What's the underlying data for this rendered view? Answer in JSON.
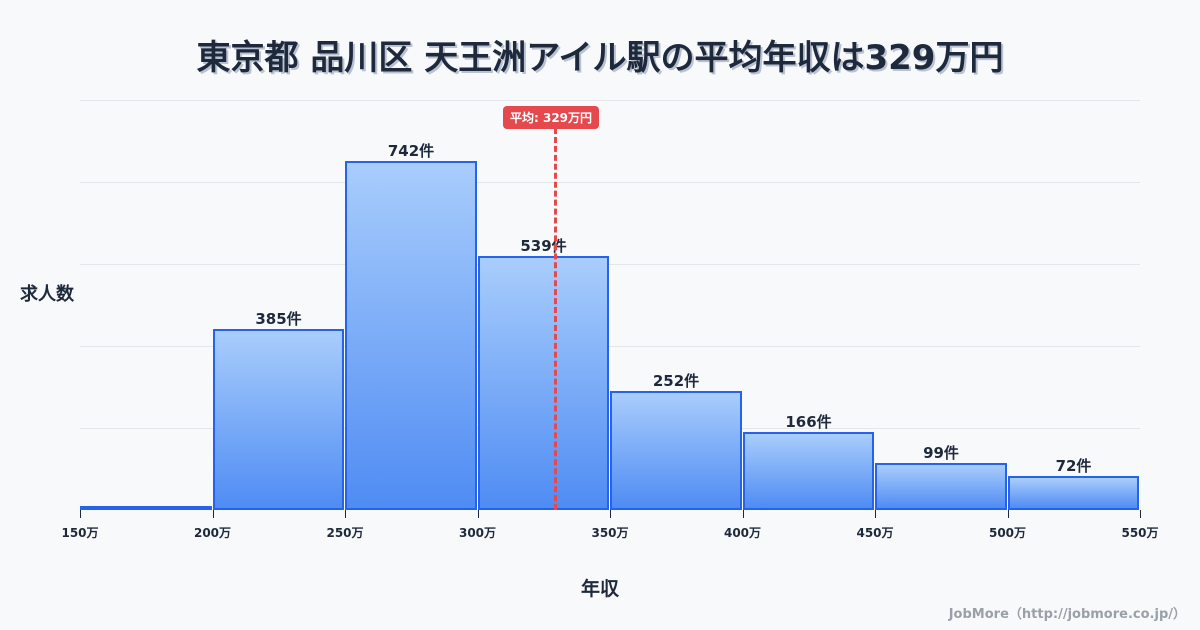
{
  "title": "東京都 品川区 天王洲アイル駅の平均年収は329万円",
  "axis": {
    "ylabel": "求人数",
    "xlabel": "年収"
  },
  "average": {
    "label": "平均: 329万円",
    "value": 329
  },
  "credit": "JobMore（http://jobmore.co.jp/）",
  "ticks": [
    "150万",
    "200万",
    "250万",
    "300万",
    "350万",
    "400万",
    "450万",
    "500万",
    "550万"
  ],
  "bars": [
    {
      "label": ""
    },
    {
      "label": "385件"
    },
    {
      "label": "742件"
    },
    {
      "label": "539件"
    },
    {
      "label": "252件"
    },
    {
      "label": "166件"
    },
    {
      "label": "99件"
    },
    {
      "label": "72件"
    }
  ],
  "colors": {
    "bar_fill_top": "#a9cdfc",
    "bar_fill_bottom": "#4f8cf3",
    "bar_border": "#2563eb",
    "average": "#e5484d",
    "text": "#1e293b"
  },
  "chart_data": {
    "type": "bar",
    "title": "東京都 品川区 天王洲アイル駅の平均年収は329万円",
    "xlabel": "年収",
    "ylabel": "求人数",
    "categories": [
      "150-200万",
      "200-250万",
      "250-300万",
      "300-350万",
      "350-400万",
      "400-450万",
      "450-500万",
      "500-550万"
    ],
    "values": [
      8,
      385,
      742,
      539,
      252,
      166,
      99,
      72
    ],
    "x_ticks": [
      "150万",
      "200万",
      "250万",
      "300万",
      "350万",
      "400万",
      "450万",
      "500万",
      "550万"
    ],
    "xlim": [
      150,
      550
    ],
    "annotations": [
      {
        "type": "vline",
        "x": 329,
        "label": "平均: 329万円"
      }
    ],
    "grid": true,
    "legend": false
  }
}
